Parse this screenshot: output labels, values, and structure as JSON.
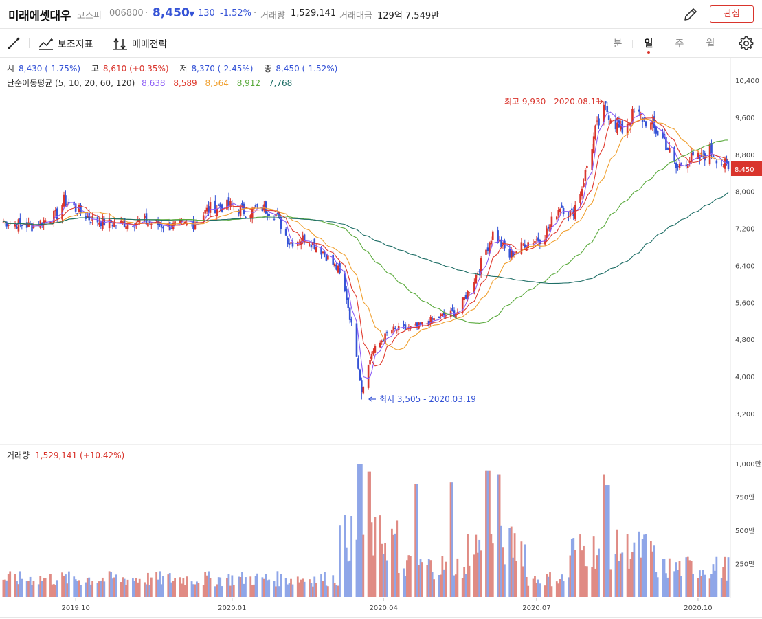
{
  "header": {
    "name": "미래에셋대우",
    "market": "코스피",
    "code": "006800",
    "sep1": "·",
    "price": "8,450",
    "change_arrow": "▼",
    "change": "130",
    "change_pct": "-1.52%",
    "sep2": "·",
    "volume_label": "거래량",
    "volume": "1,529,141",
    "amount_label": "거래대금",
    "amount": "129억 7,549만",
    "watch_label": "관심"
  },
  "toolbar": {
    "indicator_label": "보조지표",
    "strategy_label": "매매전략",
    "periods": [
      "분",
      "일",
      "주",
      "월"
    ],
    "active_period": "일"
  },
  "ohlc": {
    "open_label": "시",
    "open": "8,430 (-1.75%)",
    "high_label": "고",
    "high": "8,610 (+0.35%)",
    "low_label": "저",
    "low": "8,370 (-2.45%)",
    "close_label": "종",
    "close": "8,450 (-1.52%)"
  },
  "ma": {
    "label": "단순이동평균 (5, 10, 20, 60, 120)",
    "values": [
      "8,638",
      "8,589",
      "8,564",
      "8,912",
      "7,768"
    ],
    "colors": [
      "#8b5cf6",
      "#e03a2e",
      "#f0a030",
      "#5aaa3c",
      "#1e6e66"
    ]
  },
  "annotations": {
    "high": "최고 9,930 - 2020.08.11",
    "low": "최저 3,505 - 2020.03.19"
  },
  "price_axis": [
    "10,400",
    "9,600",
    "8,800",
    "8,000",
    "7,200",
    "6,400",
    "5,600",
    "4,800",
    "4,000",
    "3,200"
  ],
  "current_price_tag": "8,450",
  "volume_panel": {
    "label": "거래량",
    "value": "1,529,141 (+10.42%)",
    "axis": [
      "1,000만",
      "750만",
      "500만",
      "250만"
    ]
  },
  "time_axis": [
    "2019.10",
    "2020.01",
    "2020.04",
    "2020.07",
    "2020.10"
  ],
  "colors": {
    "up": "#d9342c",
    "down": "#3553d6",
    "accent": "#d9342c"
  },
  "chart_data": {
    "type": "candlestick",
    "title": "미래에셋대우",
    "y_unit": "KRW",
    "ylim": [
      2950,
      10700
    ],
    "price_ticks": [
      10400,
      9600,
      8800,
      8000,
      7200,
      6400,
      5600,
      4800,
      4000,
      3200
    ],
    "dates_start": "2019-08",
    "dates_end": "2020-10-23",
    "close_anchors": [
      [
        "2019-08-20",
        7350
      ],
      [
        "2019-09-05",
        7250
      ],
      [
        "2019-09-20",
        7500
      ],
      [
        "2019-09-24",
        7800
      ],
      [
        "2019-10-10",
        7400
      ],
      [
        "2019-10-25",
        7300
      ],
      [
        "2019-11-10",
        7350
      ],
      [
        "2019-11-25",
        7250
      ],
      [
        "2019-12-10",
        7300
      ],
      [
        "2019-12-20",
        7650
      ],
      [
        "2020-01-02",
        7700
      ],
      [
        "2020-01-10",
        7550
      ],
      [
        "2020-01-20",
        7650
      ],
      [
        "2020-01-28",
        7500
      ],
      [
        "2020-02-05",
        6900
      ],
      [
        "2020-02-15",
        7000
      ],
      [
        "2020-02-25",
        6700
      ],
      [
        "2020-03-05",
        6300
      ],
      [
        "2020-03-10",
        5700
      ],
      [
        "2020-03-16",
        4500
      ],
      [
        "2020-03-19",
        3700
      ],
      [
        "2020-03-25",
        4500
      ],
      [
        "2020-04-05",
        5000
      ],
      [
        "2020-04-20",
        5050
      ],
      [
        "2020-05-05",
        5300
      ],
      [
        "2020-05-15",
        5400
      ],
      [
        "2020-05-25",
        6100
      ],
      [
        "2020-06-05",
        7100
      ],
      [
        "2020-06-15",
        6600
      ],
      [
        "2020-06-25",
        6900
      ],
      [
        "2020-07-05",
        7000
      ],
      [
        "2020-07-15",
        7700
      ],
      [
        "2020-07-22",
        7500
      ],
      [
        "2020-07-28",
        8100
      ],
      [
        "2020-08-05",
        9300
      ],
      [
        "2020-08-11",
        9800
      ],
      [
        "2020-08-20",
        9300
      ],
      [
        "2020-08-28",
        9700
      ],
      [
        "2020-09-05",
        9500
      ],
      [
        "2020-09-15",
        9100
      ],
      [
        "2020-09-22",
        8500
      ],
      [
        "2020-09-29",
        8700
      ],
      [
        "2020-10-06",
        8700
      ],
      [
        "2020-10-12",
        8900
      ],
      [
        "2020-10-20",
        8600
      ],
      [
        "2020-10-23",
        8450
      ]
    ],
    "high_point": {
      "date": "2020-08-11",
      "value": 9930
    },
    "low_point": {
      "date": "2020-03-19",
      "value": 3505
    },
    "moving_averages": [
      {
        "name": "5",
        "last": 8638
      },
      {
        "name": "10",
        "last": 8589
      },
      {
        "name": "20",
        "last": 8564
      },
      {
        "name": "60",
        "last": 8912
      },
      {
        "name": "120",
        "last": 7768
      }
    ],
    "volume": {
      "unit": "만",
      "ylim": [
        0,
        1050
      ],
      "ticks": [
        1000,
        750,
        500,
        250
      ],
      "peaks": [
        [
          "2020-03-18",
          1000
        ],
        [
          "2020-03-23",
          940
        ],
        [
          "2020-04-20",
          850
        ],
        [
          "2020-05-11",
          860
        ],
        [
          "2020-06-02",
          950
        ],
        [
          "2020-06-08",
          920
        ],
        [
          "2020-08-10",
          920
        ],
        [
          "2020-08-12",
          840
        ]
      ],
      "baseline": 130,
      "last": 152.9
    }
  }
}
